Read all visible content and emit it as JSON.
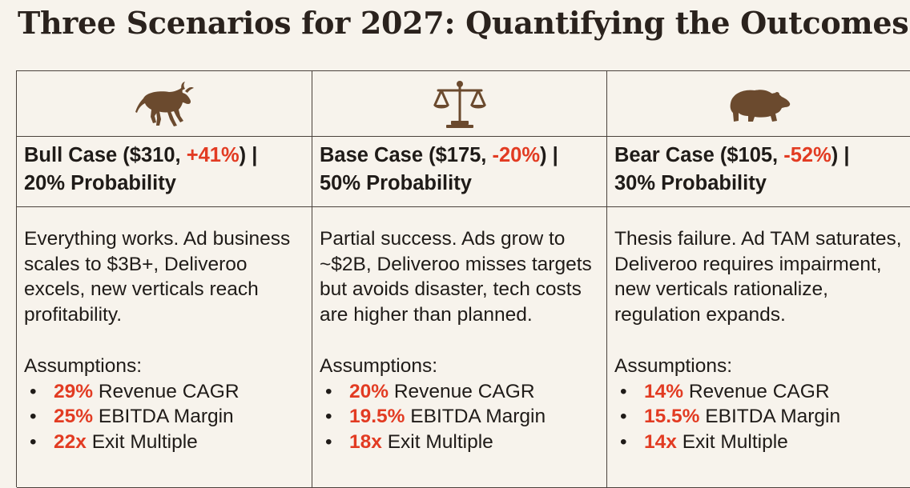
{
  "title": "Three Scenarios for 2027: Quantifying the Outcomes",
  "colors": {
    "background": "#f7f3ec",
    "accent_red": "#e23b22",
    "icon_brown": "#6b4a2e",
    "border": "#4a423c"
  },
  "scenarios": [
    {
      "icon": "bull-icon",
      "name": "Bull Case ($310, ",
      "change": "+41%",
      "name_end": ") |",
      "probability": "20% Probability",
      "description": "Everything works. Ad business scales to $3B+, Deliveroo excels, new verticals reach profitability.",
      "assumptions_title": "Assumptions:",
      "assumptions": [
        {
          "bullet": "•",
          "value": "29%",
          "label": " Revenue CAGR"
        },
        {
          "bullet": "•",
          "value": "25%",
          "label": " EBITDA Margin"
        },
        {
          "bullet": "•",
          "value": "22x",
          "label": " Exit Multiple"
        }
      ]
    },
    {
      "icon": "scales-icon",
      "name": "Base Case ($175, ",
      "change": "-20%",
      "name_end": ") |",
      "probability": "50% Probability",
      "description": "Partial success. Ads grow to ~$2B, Deliveroo misses targets but avoids disaster, tech costs are higher than planned.",
      "assumptions_title": "Assumptions:",
      "assumptions": [
        {
          "bullet": "•",
          "value": "20%",
          "label": " Revenue CAGR"
        },
        {
          "bullet": "•",
          "value": "19.5%",
          "label": " EBITDA Margin"
        },
        {
          "bullet": "•",
          "value": "18x",
          "label": " Exit Multiple"
        }
      ]
    },
    {
      "icon": "bear-icon",
      "name": "Bear Case ($105, ",
      "change": "-52%",
      "name_end": ") |",
      "probability": "30% Probability",
      "description": "Thesis failure. Ad TAM saturates, Deliveroo requires impairment, new verticals rationalize, regulation expands.",
      "assumptions_title": "Assumptions:",
      "assumptions": [
        {
          "bullet": "•",
          "value": "14%",
          "label": " Revenue CAGR"
        },
        {
          "bullet": "•",
          "value": "15.5%",
          "label": " EBITDA Margin"
        },
        {
          "bullet": "•",
          "value": "14x",
          "label": " Exit Multiple"
        }
      ]
    }
  ]
}
